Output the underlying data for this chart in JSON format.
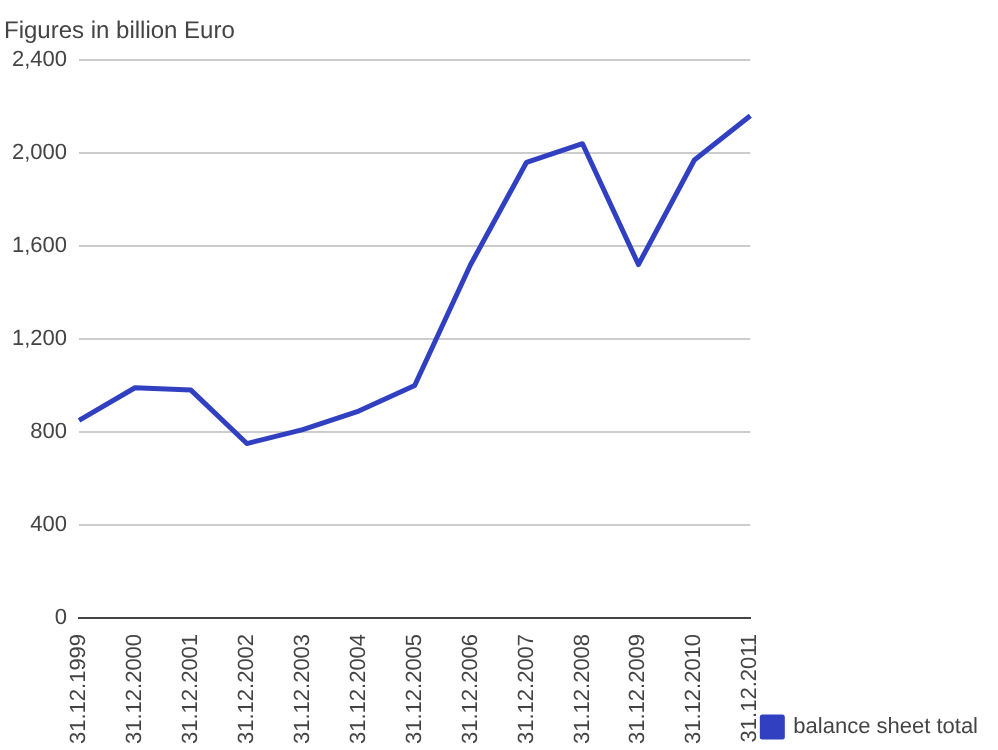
{
  "chart_data": {
    "type": "line",
    "ylabel": "Figures in billion Euro",
    "categories": [
      "31.12.1999",
      "31.12.2000",
      "31.12.2001",
      "31.12.2002",
      "31.12.2003",
      "31.12.2004",
      "31.12.2005",
      "31.12.2006",
      "31.12.2007",
      "31.12.2008",
      "31.12.2009",
      "31.12.2010",
      "31.12.2011"
    ],
    "series": [
      {
        "name": "balance sheet total",
        "color": "#3040c0",
        "values": [
          850,
          990,
          980,
          750,
          810,
          890,
          1000,
          1520,
          1960,
          2040,
          1520,
          1970,
          2160
        ]
      }
    ],
    "ylim": [
      0,
      2400
    ],
    "yticks": [
      {
        "value": 0,
        "label": "0"
      },
      {
        "value": 400,
        "label": "400"
      },
      {
        "value": 800,
        "label": "800"
      },
      {
        "value": 1200,
        "label": "1,200"
      },
      {
        "value": 1600,
        "label": "1,600"
      },
      {
        "value": 2000,
        "label": "2,000"
      },
      {
        "value": 2400,
        "label": "2,400"
      }
    ],
    "grid": "y",
    "legend": "bottom right",
    "marker": "none",
    "line_style": "solid"
  }
}
